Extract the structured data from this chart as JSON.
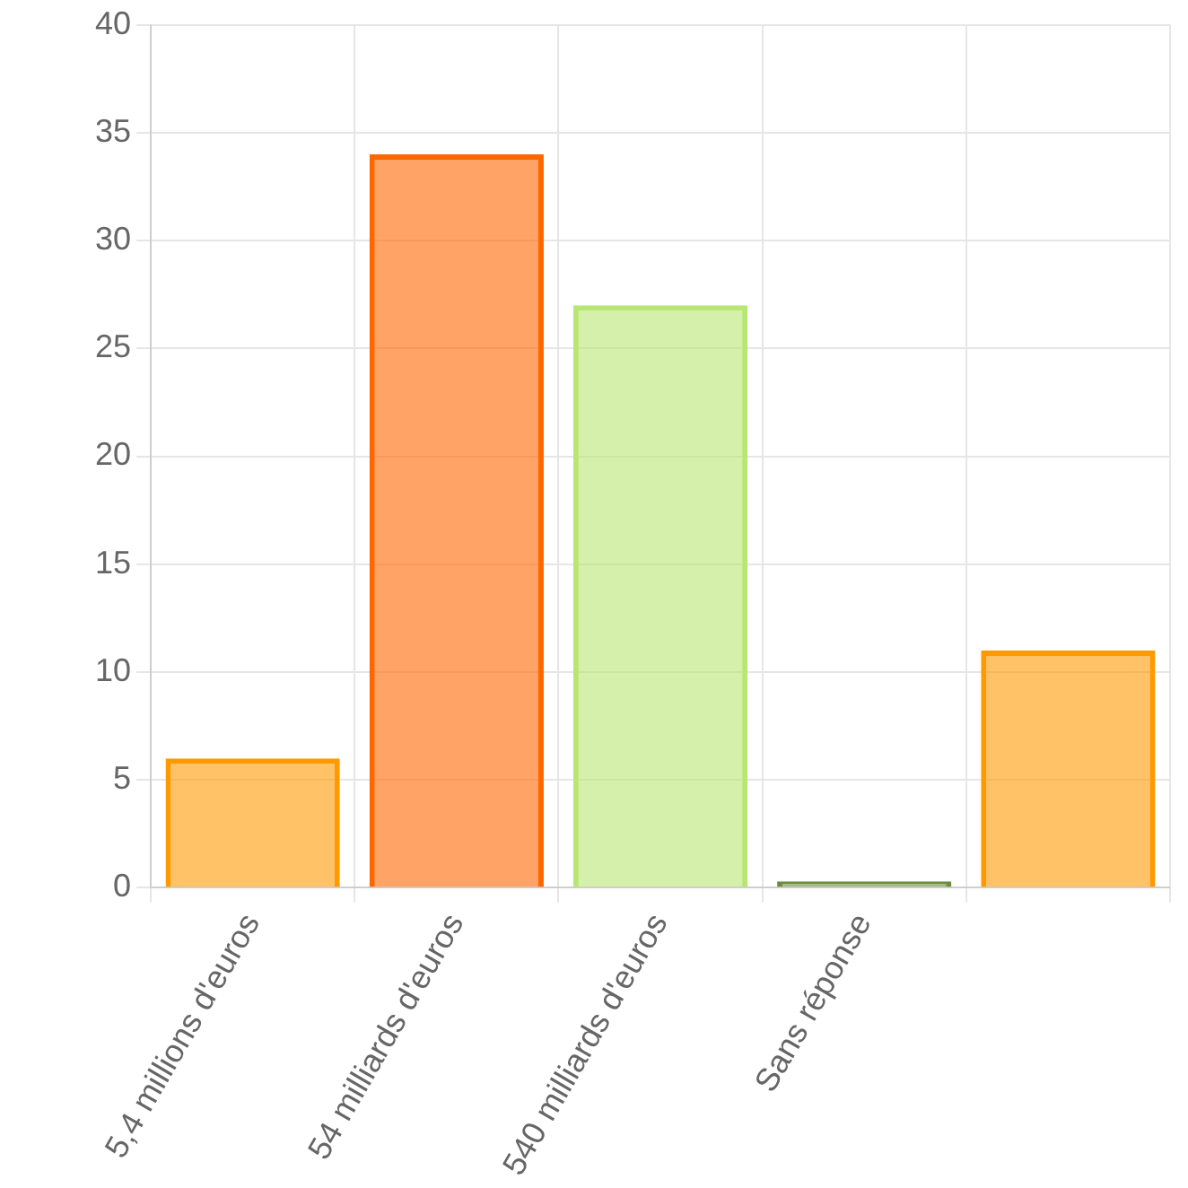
{
  "chart_data": {
    "type": "bar",
    "categories": [
      "5,4 millions d'euros",
      "54 milliards d'euros",
      "540 milliards d'euros",
      "Sans réponse",
      null
    ],
    "values": [
      6,
      34,
      27,
      0.3,
      11
    ],
    "colors": [
      "#ff9900",
      "#ff6600",
      "#b8e673",
      "#6b8e3e",
      "#ff9900"
    ],
    "ylim": [
      0,
      40
    ],
    "yticks": [
      0,
      5,
      10,
      15,
      20,
      25,
      30,
      35,
      40
    ],
    "grid": true,
    "legend": false
  }
}
